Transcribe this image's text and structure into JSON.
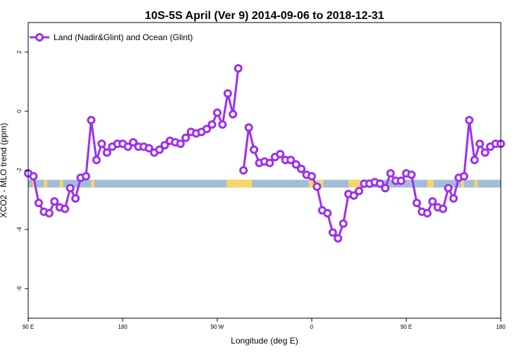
{
  "chart_data": {
    "type": "line",
    "title": "10S-5S April (Ver 9)   2014-09-06 to 2018-12-31",
    "xlabel": "Longitude (deg E)",
    "ylabel": "XCO2 - MLO trend (ppm)",
    "xlim": [
      90,
      540
    ],
    "ylim": [
      -7,
      3
    ],
    "x_ticks": [
      {
        "value": 90,
        "label": "90 E"
      },
      {
        "value": 180,
        "label": "180"
      },
      {
        "value": 270,
        "label": "90 W"
      },
      {
        "value": 360,
        "label": "0"
      },
      {
        "value": 450,
        "label": "90 E"
      },
      {
        "value": 540,
        "label": "180"
      }
    ],
    "y_ticks": [
      {
        "value": 2,
        "label": "2"
      },
      {
        "value": 0,
        "label": "0"
      },
      {
        "value": -2,
        "label": "-2"
      },
      {
        "value": -4,
        "label": "-4"
      },
      {
        "value": -6,
        "label": "-6"
      }
    ],
    "grid": false,
    "legend_position": "top-left",
    "colors": {
      "series": "#9b30f0",
      "ocean_band": "#a3bcd8",
      "land_band": "#f7d56a"
    },
    "land_band": {
      "y": -2.45,
      "segments": [
        [
          94,
          96
        ],
        [
          105,
          108
        ],
        [
          120,
          123
        ],
        [
          150,
          153
        ],
        [
          279,
          303
        ],
        [
          357,
          371
        ],
        [
          395,
          417
        ],
        [
          470,
          476
        ],
        [
          502,
          505
        ],
        [
          515,
          518
        ]
      ]
    },
    "series": [
      {
        "name": "Land (Nadir&Glint) and Ocean (Glint)",
        "segments": [
          [
            [
              90,
              -2.1
            ],
            [
              95,
              -2.2
            ],
            [
              100,
              -3.1
            ],
            [
              105,
              -3.4
            ],
            [
              110,
              -3.45
            ],
            [
              115,
              -3.05
            ],
            [
              120,
              -3.25
            ],
            [
              125,
              -3.3
            ],
            [
              130,
              -2.6
            ],
            [
              135,
              -2.95
            ],
            [
              140,
              -2.25
            ],
            [
              145,
              -2.2
            ],
            [
              150,
              -0.3
            ],
            [
              155,
              -1.65
            ],
            [
              160,
              -1.1
            ],
            [
              165,
              -1.4
            ],
            [
              170,
              -1.2
            ],
            [
              175,
              -1.1
            ],
            [
              180,
              -1.1
            ],
            [
              185,
              -1.2
            ],
            [
              190,
              -1.05
            ],
            [
              195,
              -1.2
            ],
            [
              200,
              -1.2
            ],
            [
              205,
              -1.25
            ],
            [
              210,
              -1.4
            ],
            [
              215,
              -1.3
            ],
            [
              220,
              -1.15
            ],
            [
              225,
              -1.0
            ],
            [
              230,
              -1.05
            ],
            [
              235,
              -1.1
            ],
            [
              240,
              -0.9
            ],
            [
              245,
              -0.7
            ],
            [
              250,
              -0.75
            ],
            [
              255,
              -0.7
            ],
            [
              260,
              -0.6
            ],
            [
              265,
              -0.45
            ],
            [
              270,
              -0.05
            ],
            [
              275,
              -0.45
            ],
            [
              280,
              0.6
            ],
            [
              285,
              -0.1
            ],
            [
              290,
              1.45
            ]
          ],
          [
            [
              295,
              -2.0
            ],
            [
              300,
              -0.55
            ],
            [
              305,
              -1.3
            ],
            [
              310,
              -1.75
            ],
            [
              315,
              -1.7
            ],
            [
              320,
              -1.75
            ],
            [
              325,
              -1.55
            ],
            [
              330,
              -1.45
            ],
            [
              335,
              -1.65
            ],
            [
              340,
              -1.65
            ],
            [
              345,
              -1.8
            ],
            [
              350,
              -1.95
            ],
            [
              355,
              -2.15
            ],
            [
              360,
              -2.2
            ],
            [
              365,
              -2.55
            ],
            [
              370,
              -3.35
            ],
            [
              375,
              -3.45
            ],
            [
              380,
              -4.1
            ],
            [
              385,
              -4.3
            ],
            [
              390,
              -3.8
            ],
            [
              395,
              -2.8
            ],
            [
              400,
              -2.85
            ],
            [
              405,
              -2.7
            ],
            [
              410,
              -2.45
            ],
            [
              415,
              -2.45
            ],
            [
              420,
              -2.4
            ],
            [
              425,
              -2.45
            ],
            [
              430,
              -2.6
            ],
            [
              435,
              -2.1
            ],
            [
              440,
              -2.35
            ],
            [
              445,
              -2.35
            ],
            [
              450,
              -2.1
            ],
            [
              455,
              -2.15
            ],
            [
              460,
              -3.1
            ],
            [
              465,
              -3.4
            ],
            [
              470,
              -3.45
            ],
            [
              475,
              -3.05
            ],
            [
              480,
              -3.25
            ],
            [
              485,
              -3.3
            ],
            [
              490,
              -2.6
            ],
            [
              495,
              -2.95
            ],
            [
              500,
              -2.25
            ],
            [
              505,
              -2.2
            ],
            [
              510,
              -0.3
            ],
            [
              515,
              -1.65
            ],
            [
              520,
              -1.1
            ],
            [
              525,
              -1.4
            ],
            [
              530,
              -1.2
            ],
            [
              535,
              -1.1
            ],
            [
              540,
              -1.1
            ]
          ]
        ]
      }
    ]
  }
}
